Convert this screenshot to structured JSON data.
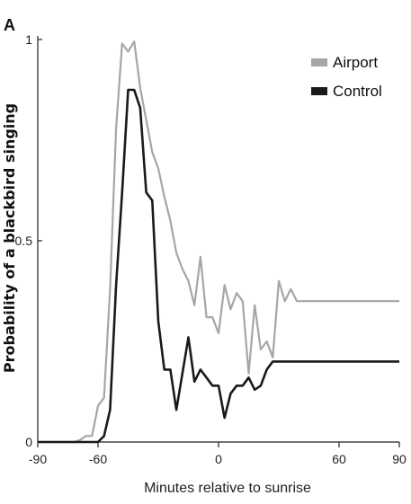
{
  "panel_label": "A",
  "chart_data": {
    "type": "line",
    "xlabel": "Minutes relative to sunrise",
    "ylabel": "Probability of a blackbird singing",
    "xlim": [
      -90,
      90
    ],
    "ylim": [
      0,
      1
    ],
    "x_ticks": [
      -90,
      -60,
      0,
      60,
      90
    ],
    "x_tick_labels": [
      "-90",
      "-60",
      "0",
      "60",
      "90"
    ],
    "y_ticks": [
      0,
      0.5,
      1
    ],
    "y_tick_labels": [
      "0",
      "0.5",
      "1"
    ],
    "grid": false,
    "legend_position": "top-right",
    "series": [
      {
        "name": "Airport",
        "color": "#a6a6a6",
        "x": [
          -90,
          -85,
          -80,
          -75,
          -72,
          -69,
          -66,
          -63,
          -60,
          -57,
          -54,
          -51,
          -48,
          -45,
          -42,
          -39,
          -36,
          -33,
          -30,
          -27,
          -24,
          -21,
          -18,
          -15,
          -12,
          -9,
          -6,
          -3,
          0,
          3,
          6,
          9,
          12,
          15,
          18,
          21,
          24,
          27,
          30,
          33,
          36,
          39,
          42,
          45,
          48,
          51,
          54,
          57,
          60,
          63,
          66,
          69,
          72,
          75,
          78,
          81,
          84,
          87,
          90
        ],
        "y": [
          0,
          0,
          0,
          0,
          0,
          0.005,
          0.015,
          0.015,
          0.09,
          0.11,
          0.38,
          0.78,
          0.99,
          0.97,
          0.995,
          0.88,
          0.8,
          0.72,
          0.68,
          0.61,
          0.55,
          0.47,
          0.43,
          0.4,
          0.34,
          0.46,
          0.31,
          0.31,
          0.27,
          0.39,
          0.33,
          0.37,
          0.35,
          0.17,
          0.34,
          0.23,
          0.25,
          0.21,
          0.4,
          0.35,
          0.38,
          0.35,
          0.35,
          0.35,
          0.35,
          0.35,
          0.35,
          0.35,
          0.35,
          0.35,
          0.35,
          0.35,
          0.35,
          0.35,
          0.35,
          0.35,
          0.35,
          0.35,
          0.35
        ]
      },
      {
        "name": "Control",
        "color": "#1a1a1a",
        "x": [
          -90,
          -85,
          -80,
          -75,
          -72,
          -69,
          -66,
          -63,
          -60,
          -57,
          -54,
          -51,
          -48,
          -45,
          -42,
          -39,
          -36,
          -33,
          -30,
          -27,
          -24,
          -21,
          -18,
          -15,
          -12,
          -9,
          -6,
          -3,
          0,
          3,
          6,
          9,
          12,
          15,
          18,
          21,
          24,
          27,
          30,
          33,
          36,
          39,
          42,
          45,
          48,
          51,
          54,
          57,
          60,
          63,
          66,
          69,
          72,
          75,
          78,
          81,
          84,
          87,
          90
        ],
        "y": [
          0,
          0,
          0,
          0,
          0,
          0,
          0,
          0,
          0,
          0.015,
          0.08,
          0.39,
          0.62,
          0.875,
          0.875,
          0.83,
          0.62,
          0.6,
          0.3,
          0.18,
          0.18,
          0.08,
          0.17,
          0.26,
          0.15,
          0.18,
          0.16,
          0.14,
          0.14,
          0.06,
          0.12,
          0.14,
          0.14,
          0.16,
          0.13,
          0.14,
          0.18,
          0.2,
          0.2,
          0.2,
          0.2,
          0.2,
          0.2,
          0.2,
          0.2,
          0.2,
          0.2,
          0.2,
          0.2,
          0.2,
          0.2,
          0.2,
          0.2,
          0.2,
          0.2,
          0.2,
          0.2,
          0.2,
          0.2
        ]
      }
    ]
  }
}
